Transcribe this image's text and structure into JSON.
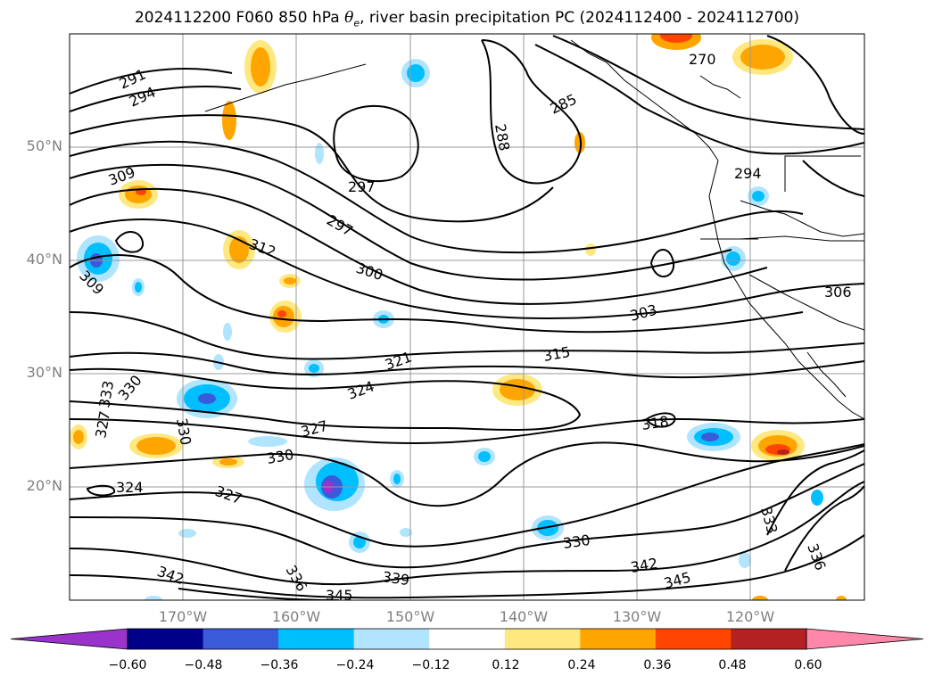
{
  "title": {
    "prefix": "2024112200 F060 850 hPa ",
    "symbol": "θ",
    "subscript": "e",
    "suffix": ", river basin precipitation PC (2024112400 - 2024112700)"
  },
  "map": {
    "lon_range": [
      -180,
      -110
    ],
    "lat_range": [
      10,
      60
    ],
    "lat_labels": [
      "50°N",
      "40°N",
      "30°N",
      "20°N"
    ],
    "lon_labels": [
      "170°W",
      "160°W",
      "150°W",
      "140°W",
      "130°W",
      "120°W"
    ],
    "contour_labels": [
      "291",
      "294",
      "309",
      "309",
      "312",
      "297",
      "297",
      "300",
      "303",
      "285",
      "288",
      "270",
      "294",
      "306",
      "315",
      "318",
      "321",
      "324",
      "327",
      "327",
      "330",
      "330",
      "330",
      "333",
      "324",
      "327",
      "336",
      "339",
      "345",
      "342",
      "345",
      "342",
      "330",
      "333",
      "336"
    ],
    "colorbar": {
      "colors": [
        "#9933cc",
        "#000088",
        "#3a5bd9",
        "#00bfff",
        "#b0e4ff",
        "#ffffff",
        "#ffe880",
        "#ffa500",
        "#ff4500",
        "#b22222",
        "#ff88aa"
      ],
      "ticks": [
        "−0.60",
        "−0.48",
        "−0.36",
        "−0.24",
        "−0.12",
        "0.12",
        "0.24",
        "0.36",
        "0.48",
        "0.60"
      ]
    }
  }
}
